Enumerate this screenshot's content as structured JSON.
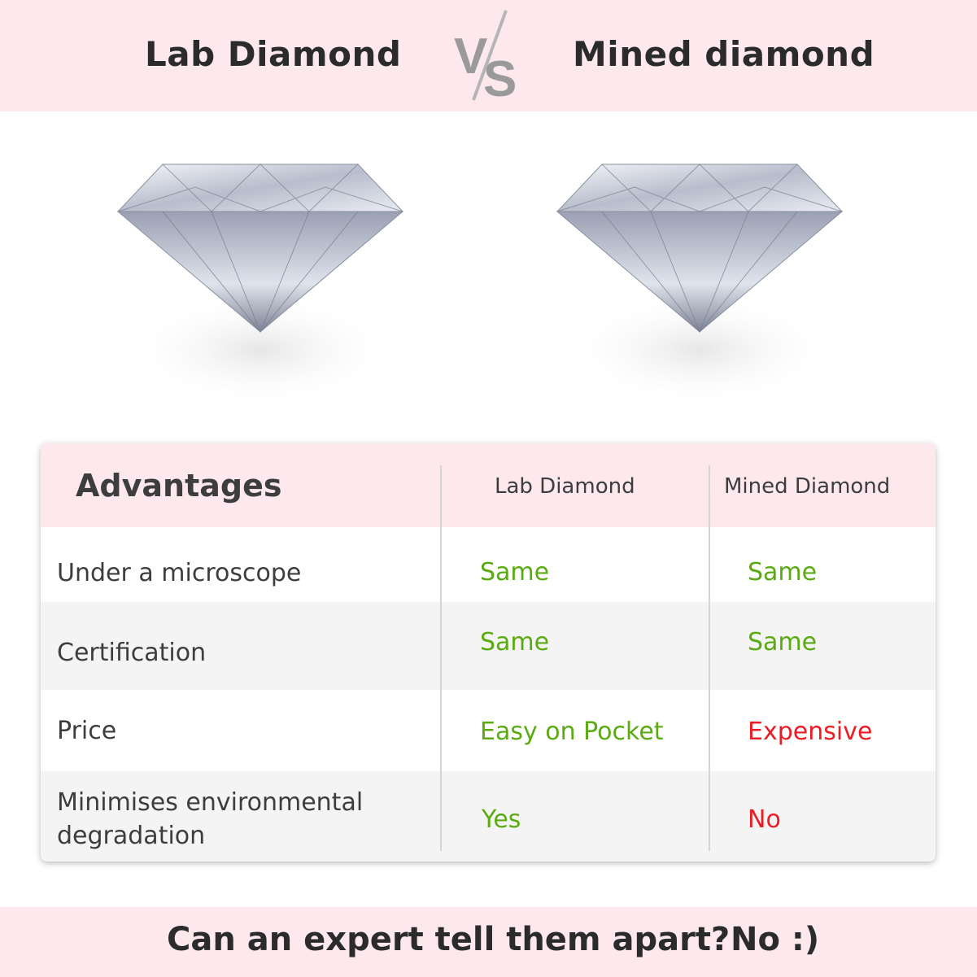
{
  "header": {
    "left_title": "Lab Diamond",
    "vs": "VS",
    "right_title": "Mined diamond"
  },
  "images": [
    {
      "icon": "diamond-image",
      "caption": ""
    },
    {
      "icon": "diamond-image",
      "caption": ""
    }
  ],
  "table": {
    "columns": [
      "Advantages",
      "Lab Diamond",
      "Mined Diamond"
    ],
    "rows": [
      {
        "label": "Under a microscope",
        "lab": "Same",
        "mined": "Same",
        "lab_status": "good",
        "mined_status": "good"
      },
      {
        "label": "Certification",
        "lab": "Same",
        "mined": "Same",
        "lab_status": "good",
        "mined_status": "good"
      },
      {
        "label": "Price",
        "lab": "Easy on Pocket",
        "mined": "Expensive",
        "lab_status": "good",
        "mined_status": "bad"
      },
      {
        "label_line1": "Minimises environmental",
        "label_line2": "degradation",
        "lab": "Yes",
        "mined": "No",
        "lab_status": "good",
        "mined_status": "bad"
      }
    ]
  },
  "footer": {
    "question": "Can an expert tell them apart?",
    "answer": "No :)"
  },
  "colors": {
    "pink": "#fde9ed",
    "good": "#5aab12",
    "bad": "#ec1c24",
    "gray_row": "#f4f4f4",
    "vs": "#9a9a9a"
  }
}
